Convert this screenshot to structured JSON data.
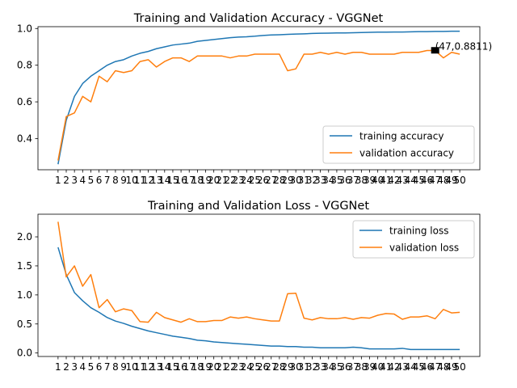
{
  "chart_data": [
    {
      "type": "line",
      "title": "Training and Validation Accuracy - VGGNet",
      "xlabel": "",
      "ylabel": "",
      "x": [
        1,
        2,
        3,
        4,
        5,
        6,
        7,
        8,
        9,
        10,
        11,
        12,
        13,
        14,
        15,
        16,
        17,
        18,
        19,
        20,
        21,
        22,
        23,
        24,
        25,
        26,
        27,
        28,
        29,
        30,
        31,
        32,
        33,
        34,
        35,
        36,
        37,
        38,
        39,
        40,
        41,
        42,
        43,
        44,
        45,
        46,
        47,
        48,
        49,
        50
      ],
      "xticklabels": [
        "1",
        "2",
        "3",
        "4",
        "5",
        "6",
        "7",
        "8",
        "9",
        "10",
        "11",
        "12",
        "13",
        "14",
        "15",
        "16",
        "17",
        "18",
        "19",
        "20",
        "21",
        "22",
        "23",
        "24",
        "25",
        "26",
        "27",
        "28",
        "29",
        "30",
        "31",
        "32",
        "33",
        "34",
        "35",
        "36",
        "37",
        "38",
        "39",
        "40",
        "41",
        "42",
        "43",
        "44",
        "45",
        "46",
        "47",
        "48",
        "49",
        "50"
      ],
      "ylim": [
        0.23,
        1.01
      ],
      "yticks": [
        0.4,
        0.6,
        0.8,
        1.0
      ],
      "yticklabels": [
        "0.4",
        "0.6",
        "0.8",
        "1.0"
      ],
      "grid": false,
      "legend": "lower-right",
      "series": [
        {
          "name": "training accuracy",
          "color": "#1f77b4",
          "values": [
            0.26,
            0.5,
            0.63,
            0.7,
            0.74,
            0.77,
            0.8,
            0.82,
            0.83,
            0.85,
            0.865,
            0.875,
            0.89,
            0.9,
            0.91,
            0.915,
            0.92,
            0.93,
            0.935,
            0.94,
            0.945,
            0.95,
            0.953,
            0.955,
            0.958,
            0.962,
            0.965,
            0.966,
            0.968,
            0.97,
            0.971,
            0.973,
            0.974,
            0.975,
            0.976,
            0.976,
            0.977,
            0.978,
            0.979,
            0.98,
            0.98,
            0.981,
            0.981,
            0.982,
            0.983,
            0.983,
            0.984,
            0.984,
            0.985,
            0.985
          ]
        },
        {
          "name": "validation accuracy",
          "color": "#ff7f0e",
          "values": [
            0.28,
            0.52,
            0.54,
            0.63,
            0.6,
            0.74,
            0.71,
            0.77,
            0.76,
            0.77,
            0.82,
            0.83,
            0.79,
            0.82,
            0.84,
            0.84,
            0.82,
            0.85,
            0.85,
            0.85,
            0.85,
            0.84,
            0.85,
            0.85,
            0.86,
            0.86,
            0.86,
            0.86,
            0.77,
            0.78,
            0.86,
            0.86,
            0.87,
            0.86,
            0.87,
            0.86,
            0.87,
            0.87,
            0.86,
            0.86,
            0.86,
            0.86,
            0.87,
            0.87,
            0.87,
            0.88,
            0.88,
            0.84,
            0.87,
            0.86
          ]
        }
      ],
      "annotation": {
        "x": 47,
        "y": 0.8811,
        "label": "(47,0.8811)"
      }
    },
    {
      "type": "line",
      "title": "Training and Validation Loss - VGGNet",
      "xlabel": "",
      "ylabel": "",
      "x": [
        1,
        2,
        3,
        4,
        5,
        6,
        7,
        8,
        9,
        10,
        11,
        12,
        13,
        14,
        15,
        16,
        17,
        18,
        19,
        20,
        21,
        22,
        23,
        24,
        25,
        26,
        27,
        28,
        29,
        30,
        31,
        32,
        33,
        34,
        35,
        36,
        37,
        38,
        39,
        40,
        41,
        42,
        43,
        44,
        45,
        46,
        47,
        48,
        49,
        50
      ],
      "xticklabels": [
        "1",
        "2",
        "3",
        "4",
        "5",
        "6",
        "7",
        "8",
        "9",
        "10",
        "11",
        "12",
        "13",
        "14",
        "15",
        "16",
        "17",
        "18",
        "19",
        "20",
        "21",
        "22",
        "23",
        "24",
        "25",
        "26",
        "27",
        "28",
        "29",
        "30",
        "31",
        "32",
        "33",
        "34",
        "35",
        "36",
        "37",
        "38",
        "39",
        "40",
        "41",
        "42",
        "43",
        "44",
        "45",
        "46",
        "47",
        "48",
        "49",
        "50"
      ],
      "ylim": [
        -0.06,
        2.39
      ],
      "yticks": [
        0.0,
        0.5,
        1.0,
        1.5,
        2.0
      ],
      "yticklabels": [
        "0.0",
        "0.5",
        "1.0",
        "1.5",
        "2.0"
      ],
      "grid": false,
      "legend": "upper-right",
      "series": [
        {
          "name": "training loss",
          "color": "#1f77b4",
          "values": [
            1.82,
            1.35,
            1.04,
            0.9,
            0.78,
            0.7,
            0.61,
            0.55,
            0.51,
            0.46,
            0.42,
            0.38,
            0.35,
            0.32,
            0.29,
            0.27,
            0.25,
            0.22,
            0.21,
            0.19,
            0.18,
            0.17,
            0.16,
            0.15,
            0.14,
            0.13,
            0.12,
            0.12,
            0.11,
            0.11,
            0.1,
            0.1,
            0.09,
            0.09,
            0.09,
            0.09,
            0.1,
            0.09,
            0.07,
            0.07,
            0.07,
            0.07,
            0.08,
            0.06,
            0.06,
            0.06,
            0.06,
            0.06,
            0.06,
            0.06
          ]
        },
        {
          "name": "validation loss",
          "color": "#ff7f0e",
          "values": [
            2.26,
            1.31,
            1.5,
            1.15,
            1.35,
            0.78,
            0.92,
            0.71,
            0.76,
            0.73,
            0.54,
            0.53,
            0.7,
            0.61,
            0.57,
            0.53,
            0.59,
            0.54,
            0.54,
            0.56,
            0.56,
            0.62,
            0.6,
            0.62,
            0.59,
            0.57,
            0.55,
            0.55,
            1.02,
            1.03,
            0.6,
            0.57,
            0.61,
            0.59,
            0.59,
            0.61,
            0.58,
            0.61,
            0.6,
            0.65,
            0.68,
            0.67,
            0.58,
            0.62,
            0.62,
            0.64,
            0.59,
            0.75,
            0.69,
            0.7
          ]
        }
      ]
    }
  ]
}
